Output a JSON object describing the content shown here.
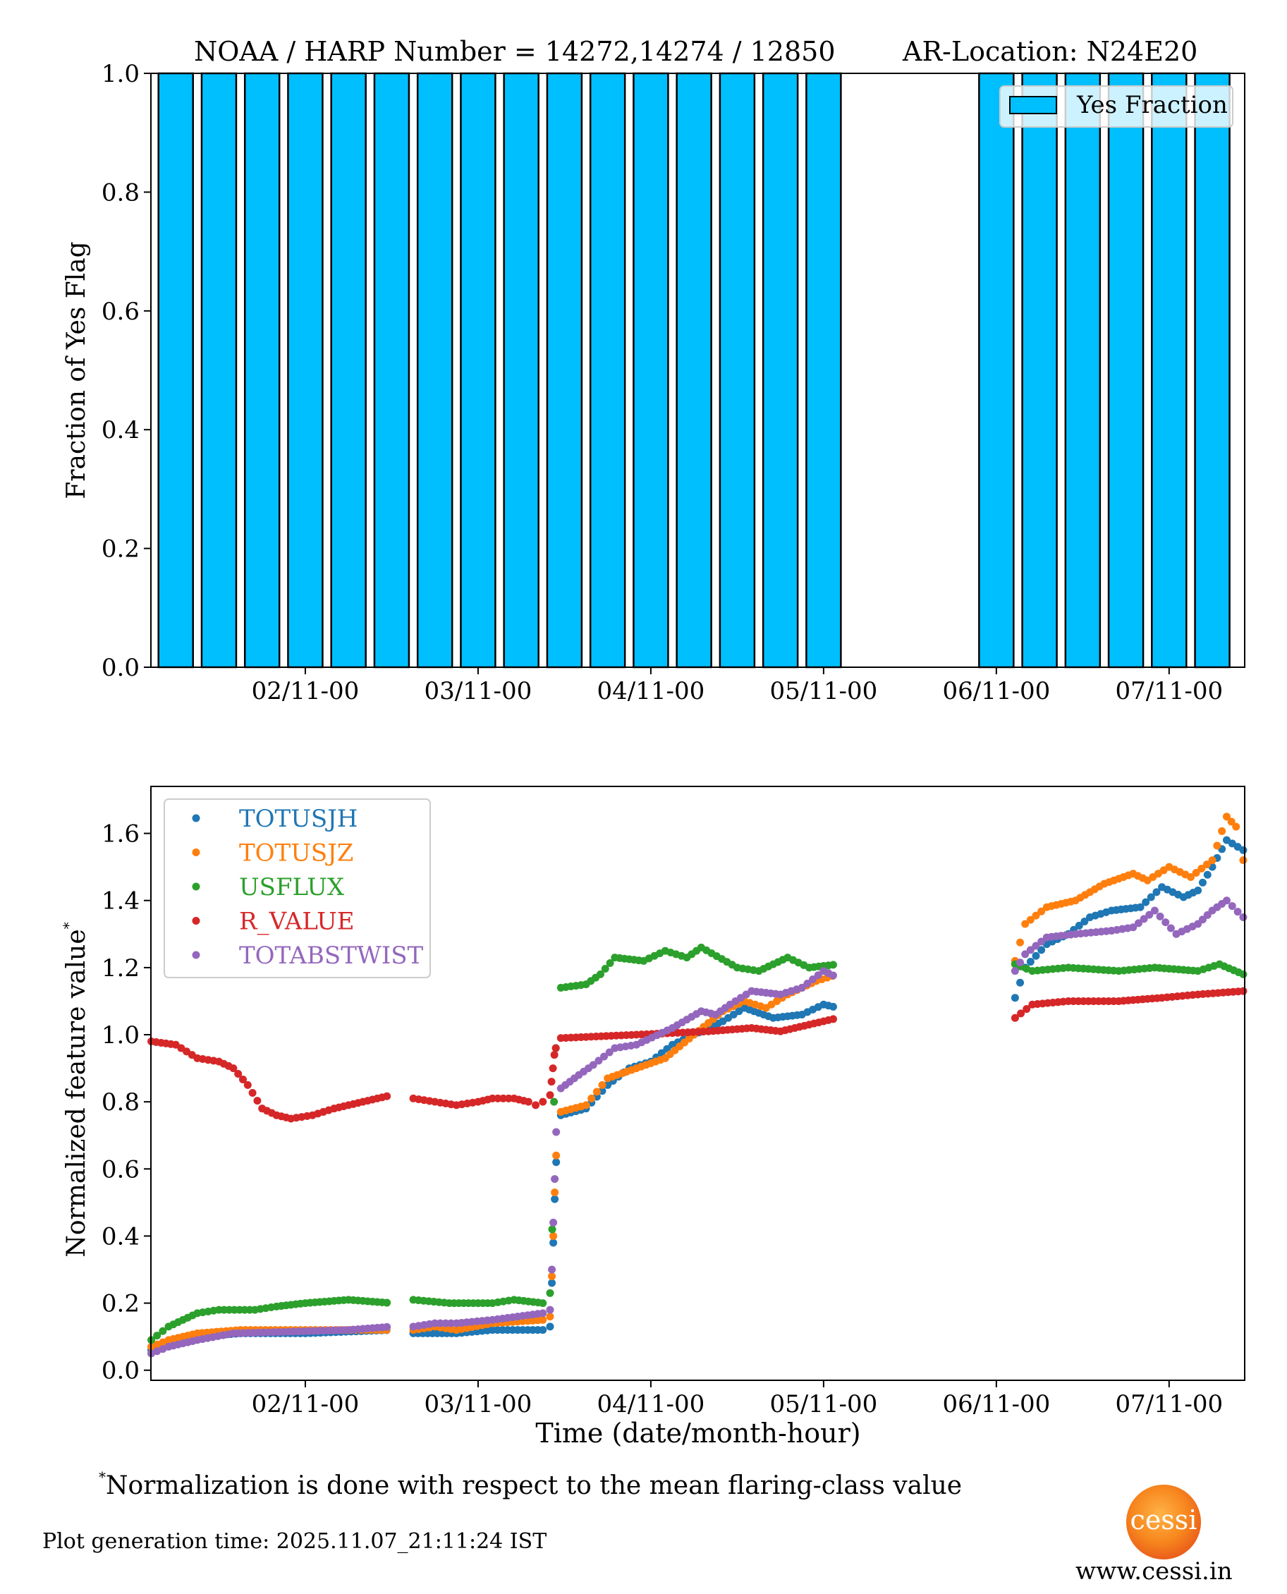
{
  "title": "NOAA / HARP Number = 14272,14274 / 12850",
  "location": "AR-Location: N24E20",
  "footnote_mark": "*",
  "footnote": "Normalization is done with respect to the mean flaring-class value",
  "generation_time": "Plot generation time: 2025.11.07_21:11:24 IST",
  "logo_text": "cessi",
  "website": "www.cessi.in",
  "chart_data": [
    {
      "type": "bar",
      "ylabel": "Fraction of Yes Flag",
      "xlabel": "",
      "ylim": [
        0,
        1
      ],
      "yticks": [
        "0.0",
        "0.2",
        "0.4",
        "0.6",
        "0.8",
        "1.0"
      ],
      "ytick_values": [
        0,
        0.2,
        0.4,
        0.6,
        0.8,
        1.0
      ],
      "x_unit": "hours since 01/11-00",
      "xlim_hours": [
        2.55,
        154.5
      ],
      "xticks": [
        {
          "label": "02/11-00",
          "hour": 24
        },
        {
          "label": "03/11-00",
          "hour": 48
        },
        {
          "label": "04/11-00",
          "hour": 72
        },
        {
          "label": "05/11-00",
          "hour": 96
        },
        {
          "label": "06/11-00",
          "hour": 120
        },
        {
          "label": "07/11-00",
          "hour": 144
        }
      ],
      "bin_hours": 6,
      "bar_color": "#00bfff",
      "legend": {
        "label": "Yes Fraction",
        "position": "top-right"
      },
      "bars": [
        {
          "hour": 6,
          "value": 1
        },
        {
          "hour": 12,
          "value": 1
        },
        {
          "hour": 18,
          "value": 1
        },
        {
          "hour": 24,
          "value": 1
        },
        {
          "hour": 30,
          "value": 1
        },
        {
          "hour": 36,
          "value": 1
        },
        {
          "hour": 42,
          "value": 1
        },
        {
          "hour": 48,
          "value": 1
        },
        {
          "hour": 54,
          "value": 1
        },
        {
          "hour": 60,
          "value": 1
        },
        {
          "hour": 66,
          "value": 1
        },
        {
          "hour": 72,
          "value": 1
        },
        {
          "hour": 78,
          "value": 1
        },
        {
          "hour": 84,
          "value": 1
        },
        {
          "hour": 90,
          "value": 1
        },
        {
          "hour": 96,
          "value": 1
        },
        {
          "hour": 120,
          "value": 1
        },
        {
          "hour": 126,
          "value": 1
        },
        {
          "hour": 132,
          "value": 1
        },
        {
          "hour": 138,
          "value": 1
        },
        {
          "hour": 144,
          "value": 1
        },
        {
          "hour": 150,
          "value": 1
        }
      ]
    },
    {
      "type": "scatter",
      "ylabel": "Normalized feature value",
      "ylabel_mark": "*",
      "xlabel": "Time (date/month-hour)",
      "ylim": [
        -0.03,
        1.74
      ],
      "yticks": [
        "0.0",
        "0.2",
        "0.4",
        "0.6",
        "0.8",
        "1.0",
        "1.2",
        "1.4",
        "1.6"
      ],
      "ytick_values": [
        0,
        0.2,
        0.4,
        0.6,
        0.8,
        1.0,
        1.2,
        1.4,
        1.6
      ],
      "x_unit": "hours since 01/11-00",
      "xlim_hours": [
        2.55,
        154.5
      ],
      "xticks": [
        {
          "label": "02/11-00",
          "hour": 24
        },
        {
          "label": "03/11-00",
          "hour": 48
        },
        {
          "label": "04/11-00",
          "hour": 72
        },
        {
          "label": "05/11-00",
          "hour": 96
        },
        {
          "label": "06/11-00",
          "hour": 120
        },
        {
          "label": "07/11-00",
          "hour": 144
        }
      ],
      "legend_position": "top-left",
      "sample_interval_hours": 0.7,
      "gaps_hours": [
        [
          36.6,
          38.2
        ],
        [
          98.3,
          122.5
        ]
      ],
      "series": [
        {
          "name": "TOTUSJH",
          "color": "#1f77b4",
          "points": [
            [
              2.6,
              0.06
            ],
            [
              5,
              0.08
            ],
            [
              9,
              0.1
            ],
            [
              15,
              0.11
            ],
            [
              24,
              0.11
            ],
            [
              36,
              0.12
            ],
            [
              39,
              0.11
            ],
            [
              45,
              0.11
            ],
            [
              50,
              0.12
            ],
            [
              57,
              0.12
            ],
            [
              58,
              0.13
            ],
            [
              58.25,
              0.26
            ],
            [
              58.45,
              0.38
            ],
            [
              58.65,
              0.51
            ],
            [
              58.85,
              0.62
            ],
            [
              59.5,
              0.76
            ],
            [
              63,
              0.78
            ],
            [
              66,
              0.85
            ],
            [
              69,
              0.9
            ],
            [
              72,
              0.92
            ],
            [
              75,
              0.97
            ],
            [
              78,
              1.0
            ],
            [
              82,
              1.04
            ],
            [
              85,
              1.08
            ],
            [
              89,
              1.05
            ],
            [
              93,
              1.06
            ],
            [
              96,
              1.09
            ],
            [
              98,
              1.08
            ],
            [
              122.6,
              1.11
            ],
            [
              124,
              1.2
            ],
            [
              127,
              1.27
            ],
            [
              130,
              1.3
            ],
            [
              133,
              1.35
            ],
            [
              136,
              1.37
            ],
            [
              140,
              1.38
            ],
            [
              143,
              1.44
            ],
            [
              146,
              1.41
            ],
            [
              148,
              1.43
            ],
            [
              150,
              1.5
            ],
            [
              152,
              1.58
            ],
            [
              154.3,
              1.55
            ]
          ]
        },
        {
          "name": "TOTUSJZ",
          "color": "#ff7f0e",
          "points": [
            [
              2.6,
              0.07
            ],
            [
              5,
              0.09
            ],
            [
              9,
              0.11
            ],
            [
              15,
              0.12
            ],
            [
              24,
              0.12
            ],
            [
              36,
              0.12
            ],
            [
              39,
              0.12
            ],
            [
              42,
              0.13
            ],
            [
              45,
              0.12
            ],
            [
              50,
              0.14
            ],
            [
              57,
              0.15
            ],
            [
              58,
              0.16
            ],
            [
              58.25,
              0.28
            ],
            [
              58.45,
              0.4
            ],
            [
              58.65,
              0.53
            ],
            [
              58.85,
              0.64
            ],
            [
              59.5,
              0.77
            ],
            [
              63,
              0.79
            ],
            [
              66,
              0.87
            ],
            [
              70,
              0.9
            ],
            [
              74,
              0.93
            ],
            [
              78,
              1.0
            ],
            [
              82,
              1.07
            ],
            [
              85,
              1.1
            ],
            [
              88,
              1.08
            ],
            [
              91,
              1.12
            ],
            [
              95,
              1.16
            ],
            [
              98,
              1.18
            ],
            [
              122.6,
              1.22
            ],
            [
              124,
              1.33
            ],
            [
              127,
              1.38
            ],
            [
              131,
              1.4
            ],
            [
              135,
              1.45
            ],
            [
              139,
              1.48
            ],
            [
              141,
              1.46
            ],
            [
              144,
              1.5
            ],
            [
              147,
              1.47
            ],
            [
              150,
              1.52
            ],
            [
              152,
              1.65
            ],
            [
              153.3,
              1.62
            ],
            [
              154.3,
              1.52
            ]
          ]
        },
        {
          "name": "USFLUX",
          "color": "#2ca02c",
          "points": [
            [
              2.6,
              0.09
            ],
            [
              5,
              0.13
            ],
            [
              9,
              0.17
            ],
            [
              12,
              0.18
            ],
            [
              17,
              0.18
            ],
            [
              20,
              0.19
            ],
            [
              24,
              0.2
            ],
            [
              30,
              0.21
            ],
            [
              36,
              0.2
            ],
            [
              39,
              0.21
            ],
            [
              44,
              0.2
            ],
            [
              50,
              0.2
            ],
            [
              53,
              0.21
            ],
            [
              57,
              0.2
            ],
            [
              58,
              0.23
            ],
            [
              58.3,
              0.42
            ],
            [
              58.55,
              0.8
            ],
            [
              58.8,
              0.96
            ],
            [
              59.5,
              1.14
            ],
            [
              63,
              1.15
            ],
            [
              65,
              1.18
            ],
            [
              67,
              1.23
            ],
            [
              71,
              1.22
            ],
            [
              74,
              1.25
            ],
            [
              77,
              1.23
            ],
            [
              79,
              1.26
            ],
            [
              84,
              1.2
            ],
            [
              87,
              1.19
            ],
            [
              91,
              1.23
            ],
            [
              94,
              1.2
            ],
            [
              98,
              1.21
            ],
            [
              122.6,
              1.21
            ],
            [
              125,
              1.19
            ],
            [
              130,
              1.2
            ],
            [
              137,
              1.19
            ],
            [
              142,
              1.2
            ],
            [
              148,
              1.19
            ],
            [
              151,
              1.21
            ],
            [
              154.3,
              1.18
            ]
          ]
        },
        {
          "name": "R_VALUE",
          "color": "#d62728",
          "points": [
            [
              2.6,
              0.98
            ],
            [
              6,
              0.97
            ],
            [
              9,
              0.93
            ],
            [
              12,
              0.92
            ],
            [
              14,
              0.9
            ],
            [
              16,
              0.85
            ],
            [
              18,
              0.78
            ],
            [
              20,
              0.76
            ],
            [
              22,
              0.75
            ],
            [
              25,
              0.76
            ],
            [
              28,
              0.78
            ],
            [
              32,
              0.8
            ],
            [
              36,
              0.82
            ],
            [
              39,
              0.81
            ],
            [
              42,
              0.8
            ],
            [
              45,
              0.79
            ],
            [
              48,
              0.8
            ],
            [
              50,
              0.81
            ],
            [
              53,
              0.81
            ],
            [
              55,
              0.8
            ],
            [
              56,
              0.79
            ],
            [
              57,
              0.8
            ],
            [
              58,
              0.82
            ],
            [
              58.2,
              0.86
            ],
            [
              58.4,
              0.9
            ],
            [
              58.6,
              0.94
            ],
            [
              58.8,
              0.96
            ],
            [
              59.5,
              0.99
            ],
            [
              70,
              1.0
            ],
            [
              80,
              1.01
            ],
            [
              86,
              1.02
            ],
            [
              90,
              1.01
            ],
            [
              94,
              1.03
            ],
            [
              98,
              1.05
            ],
            [
              122.6,
              1.05
            ],
            [
              125,
              1.09
            ],
            [
              130,
              1.1
            ],
            [
              137,
              1.1
            ],
            [
              143,
              1.11
            ],
            [
              148,
              1.12
            ],
            [
              154.3,
              1.13
            ]
          ]
        },
        {
          "name": "TOTABSTWIST",
          "color": "#9467bd",
          "points": [
            [
              2.6,
              0.05
            ],
            [
              5,
              0.07
            ],
            [
              9,
              0.09
            ],
            [
              14,
              0.11
            ],
            [
              30,
              0.12
            ],
            [
              36,
              0.13
            ],
            [
              39,
              0.13
            ],
            [
              42,
              0.14
            ],
            [
              45,
              0.14
            ],
            [
              50,
              0.15
            ],
            [
              57,
              0.17
            ],
            [
              58,
              0.18
            ],
            [
              58.25,
              0.3
            ],
            [
              58.45,
              0.44
            ],
            [
              58.65,
              0.57
            ],
            [
              58.85,
              0.71
            ],
            [
              59.5,
              0.84
            ],
            [
              62,
              0.88
            ],
            [
              64,
              0.91
            ],
            [
              67,
              0.96
            ],
            [
              70,
              0.97
            ],
            [
              75,
              1.02
            ],
            [
              79,
              1.07
            ],
            [
              81,
              1.06
            ],
            [
              83,
              1.09
            ],
            [
              86,
              1.13
            ],
            [
              90,
              1.12
            ],
            [
              93,
              1.14
            ],
            [
              96,
              1.19
            ],
            [
              98,
              1.17
            ],
            [
              122.6,
              1.19
            ],
            [
              124,
              1.24
            ],
            [
              127,
              1.29
            ],
            [
              131,
              1.3
            ],
            [
              136,
              1.31
            ],
            [
              139,
              1.32
            ],
            [
              142,
              1.37
            ],
            [
              145,
              1.3
            ],
            [
              148,
              1.33
            ],
            [
              150,
              1.37
            ],
            [
              152,
              1.4
            ],
            [
              154.3,
              1.35
            ]
          ]
        }
      ]
    }
  ]
}
